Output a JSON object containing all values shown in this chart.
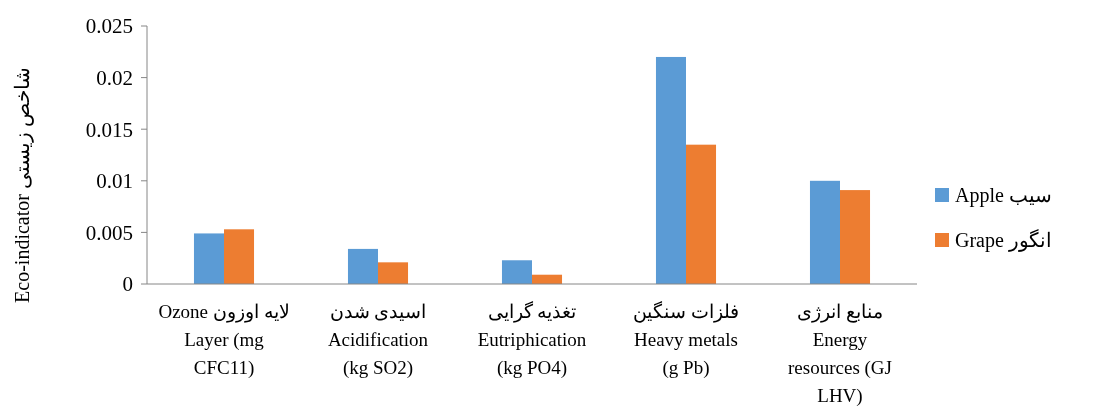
{
  "chart_data": {
    "type": "bar",
    "ylabel": "Eco-indicator شاخص زیستی",
    "categories": [
      "Ozone لایه اوزون\nLayer (mg\nCFC11)",
      "اسیدی شدن\nAcidification\n(kg SO2)",
      "تغذیه گرایی\nEutriphication\n(kg PO4)",
      "فلزات سنگین\nHeavy metals\n(g Pb)",
      "منابع انرژی\nEnergy\nresources (GJ\nLHV)"
    ],
    "series": [
      {
        "name": "Apple سیب",
        "color": "#5b9bd5",
        "values": [
          0.0049,
          0.0034,
          0.0023,
          0.022,
          0.01
        ]
      },
      {
        "name": "Grape انگور",
        "color": "#ed7d31",
        "values": [
          0.0053,
          0.0021,
          0.0009,
          0.0135,
          0.0091
        ]
      }
    ],
    "ylim": [
      0,
      0.025
    ],
    "yticks": [
      0,
      0.005,
      0.01,
      0.015,
      0.02,
      0.025
    ],
    "grid": false,
    "legend": "right"
  }
}
